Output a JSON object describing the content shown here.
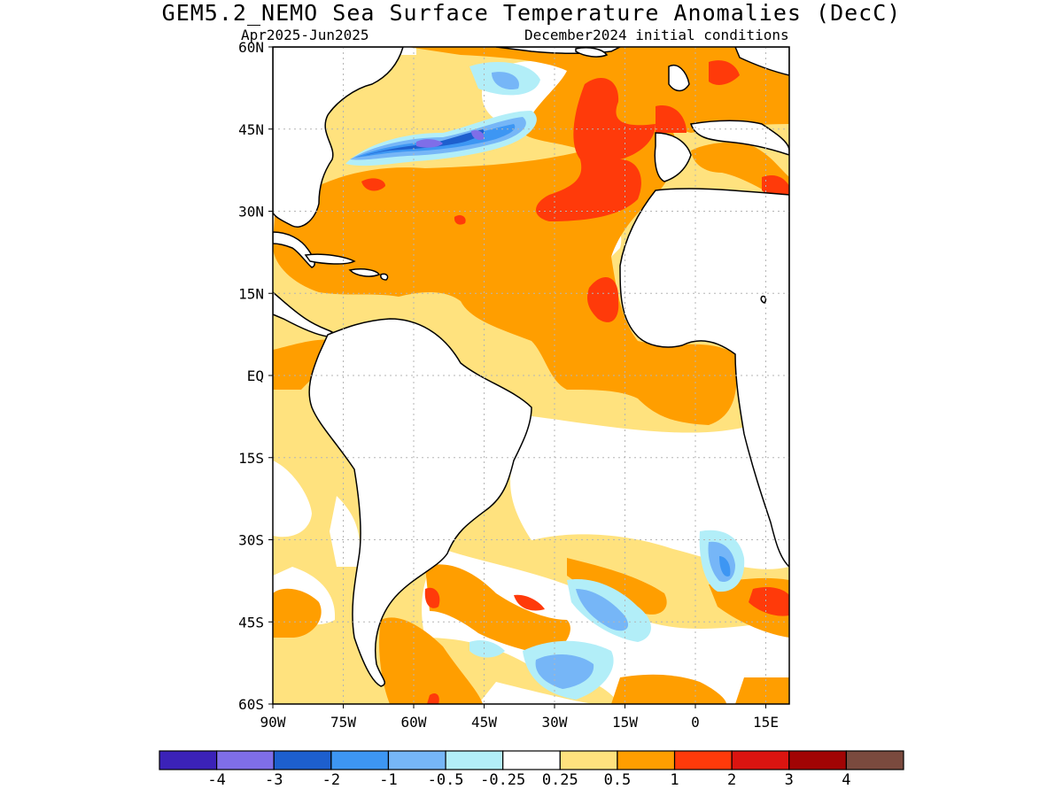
{
  "title": "GEM5.2_NEMO Sea Surface Temperature Anomalies (DecC)",
  "subtitle_left": "Apr2025-Jun2025",
  "subtitle_right": "December2024 initial conditions",
  "map": {
    "lon_range": [
      -90,
      20
    ],
    "lat_range": [
      -60,
      60
    ],
    "lon_ticks": [
      {
        "value": -90,
        "label": "90W"
      },
      {
        "value": -75,
        "label": "75W"
      },
      {
        "value": -60,
        "label": "60W"
      },
      {
        "value": -45,
        "label": "45W"
      },
      {
        "value": -30,
        "label": "30W"
      },
      {
        "value": -15,
        "label": "15W"
      },
      {
        "value": 0,
        "label": "0"
      },
      {
        "value": 15,
        "label": "15E"
      }
    ],
    "lat_ticks": [
      {
        "value": 60,
        "label": "60N"
      },
      {
        "value": 45,
        "label": "45N"
      },
      {
        "value": 30,
        "label": "30N"
      },
      {
        "value": 15,
        "label": "15N"
      },
      {
        "value": 0,
        "label": "EQ"
      },
      {
        "value": -15,
        "label": "15S"
      },
      {
        "value": -30,
        "label": "30S"
      },
      {
        "value": -45,
        "label": "45S"
      },
      {
        "value": -60,
        "label": "60S"
      }
    ],
    "grid": true
  },
  "colorbar": {
    "colors": [
      "#3b22b8",
      "#7f6ee8",
      "#1d5fce",
      "#3d96f3",
      "#76b6f7",
      "#b2eef8",
      "#ffffff",
      "#ffe27e",
      "#ff9e00",
      "#ff3a0a",
      "#db1410",
      "#a10404",
      "#7a4a3e"
    ],
    "labels": [
      "-4",
      "-3",
      "-2",
      "-1",
      "-0.5",
      "-0.25",
      "0.25",
      "0.5",
      "1",
      "2",
      "3",
      "4"
    ]
  },
  "palette": {
    "land": "#ffffff",
    "ocean_base": "#ffe27e",
    "anom_05_1": "#ff9e00",
    "anom_1_2": "#ff3a0a",
    "anom_2_3": "#db1410",
    "anom_neg_025": "#b2eef8",
    "anom_neg_05": "#76b6f7",
    "anom_neg_1": "#3d96f3",
    "anom_neg_2": "#1d5fce",
    "anom_neg_3": "#7f6ee8"
  }
}
